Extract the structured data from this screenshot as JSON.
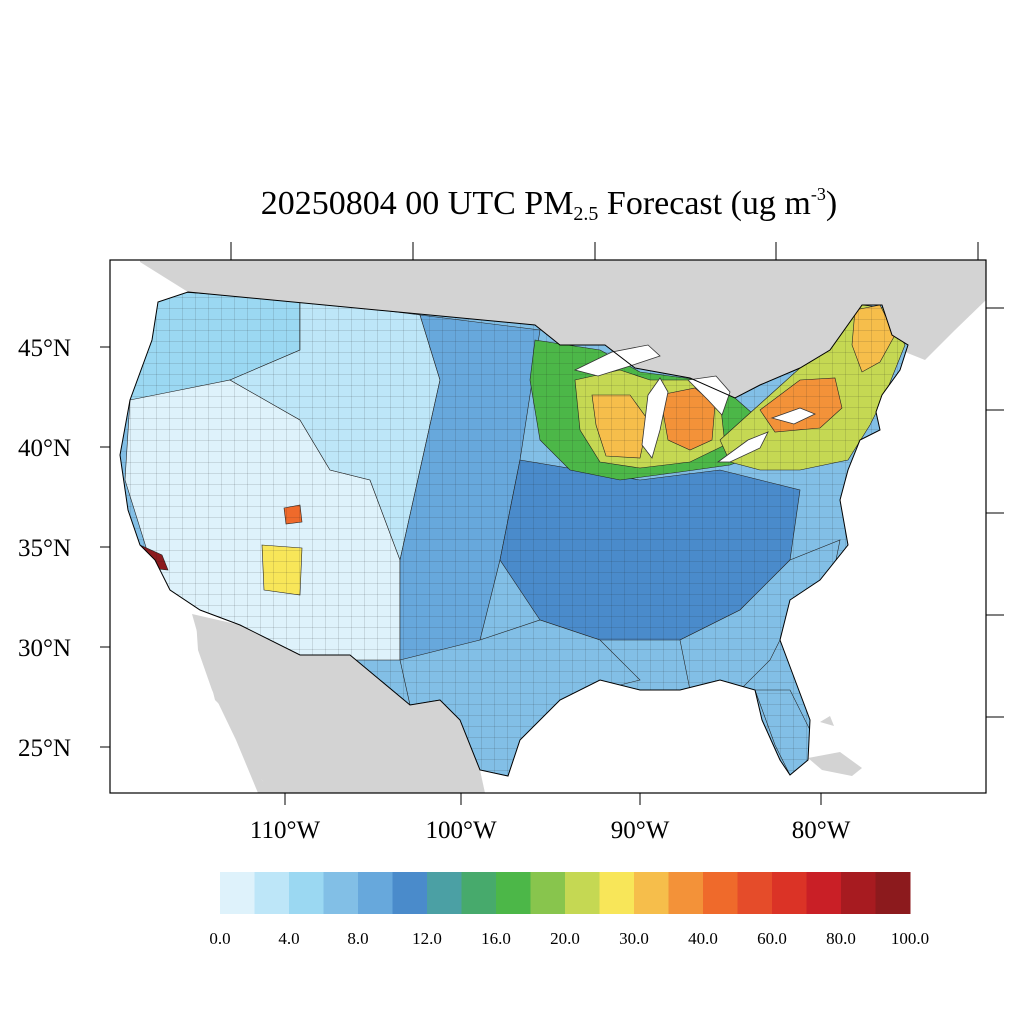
{
  "title": {
    "prefix": "20250804 00 UTC PM",
    "sub": "2.5",
    "middle": " Forecast (ug m",
    "sup": "-3",
    "suffix": ")"
  },
  "map": {
    "lat_labels": [
      "45°N",
      "40°N",
      "35°N",
      "30°N",
      "25°N"
    ],
    "lon_labels": [
      "110°W",
      "100°W",
      "90°W",
      "80°W"
    ],
    "land_color": "#d3d3d3",
    "water_color": "#ffffff"
  },
  "colorbar": {
    "colors": [
      "#def2fb",
      "#bde6f8",
      "#9bd8f2",
      "#82bfe6",
      "#67a8dc",
      "#4a8bcb",
      "#4ba0a4",
      "#47aa6c",
      "#4cb748",
      "#88c54d",
      "#c5d853",
      "#f8e659",
      "#f6be4b",
      "#f39239",
      "#ef6a2b",
      "#e54c2a",
      "#db3326",
      "#c91f26",
      "#a71b20",
      "#8c1a1d"
    ],
    "tick_labels": [
      "0.0",
      "4.0",
      "8.0",
      "12.0",
      "16.0",
      "20.0",
      "30.0",
      "40.0",
      "60.0",
      "80.0",
      "100.0"
    ]
  },
  "regions": [
    {
      "name": "pacific-northwest",
      "color": "#9bd8f2"
    },
    {
      "name": "great-basin",
      "color": "#def2fb"
    },
    {
      "name": "rockies",
      "color": "#bde6f8"
    },
    {
      "name": "great-plains",
      "color": "#67a8dc"
    },
    {
      "name": "midwest-south",
      "color": "#4a8bcb"
    },
    {
      "name": "southeast",
      "color": "#82bfe6"
    },
    {
      "name": "florida",
      "color": "#82bfe6"
    },
    {
      "name": "texas-gulf",
      "color": "#82bfe6"
    },
    {
      "name": "upper-midwest-smoke",
      "color": "#4cb748"
    },
    {
      "name": "great-lakes-smoke",
      "color": "#c5d853"
    },
    {
      "name": "michigan-core",
      "color": "#f39239"
    },
    {
      "name": "wisconsin-core",
      "color": "#f6be4b"
    },
    {
      "name": "northeast-smoke",
      "color": "#c5d853"
    },
    {
      "name": "new-york-core",
      "color": "#f39239"
    },
    {
      "name": "new-england-core",
      "color": "#f6be4b"
    },
    {
      "name": "southern-california",
      "color": "#8c1a1d"
    },
    {
      "name": "arizona-hotspot",
      "color": "#f8e659"
    },
    {
      "name": "utah-hotspot",
      "color": "#ef6a2b"
    }
  ]
}
